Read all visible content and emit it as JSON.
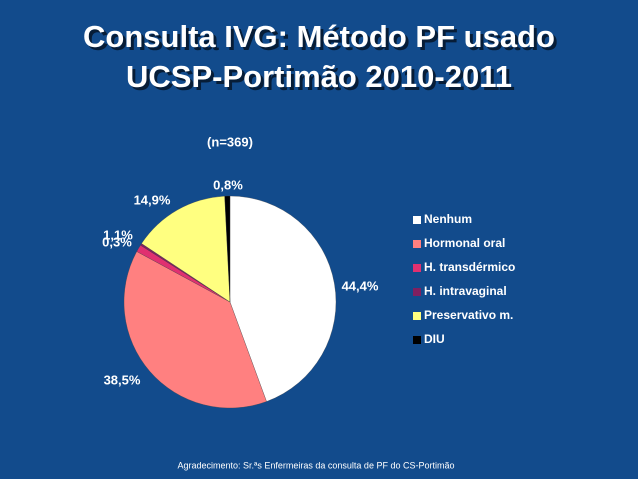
{
  "chart_data": {
    "type": "pie",
    "title": "Consulta IVG: Método PF usado",
    "subtitle": "UCSP-Portimão  2010-2011",
    "annotation": "(n=369)",
    "footnote": "Agradecimento: Sr.ªs Enfermeiras da consulta de PF do CS-Portimão",
    "categories": [
      "Nenhum",
      "Hormonal oral",
      "H. transdérmico",
      "H. intravaginal",
      "Preservativo m.",
      "DIU"
    ],
    "values": [
      44.4,
      38.5,
      1.1,
      0.3,
      14.9,
      0.8
    ],
    "value_labels": [
      "44,4%",
      "38,5%",
      "1,1%",
      "0,3%",
      "14,9%",
      "0,8%"
    ],
    "colors": [
      "#ffffff",
      "#ff8080",
      "#e03070",
      "#802060",
      "#ffff80",
      "#000000"
    ],
    "legend": "right"
  }
}
